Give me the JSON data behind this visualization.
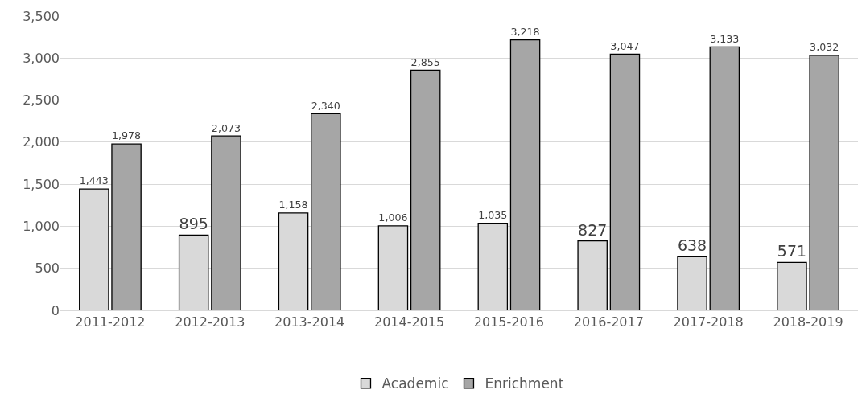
{
  "chart_data": {
    "type": "bar",
    "categories": [
      "2011-2012",
      "2012-2013",
      "2013-2014",
      "2014-2015",
      "2015-2016",
      "2016-2017",
      "2017-2018",
      "2018-2019"
    ],
    "series": [
      {
        "name": "Academic",
        "color": "#d9d9d9",
        "values": [
          1443,
          895,
          1158,
          1006,
          1035,
          827,
          638,
          571
        ],
        "value_labels": [
          "1,443",
          "895",
          "1,158",
          "1,006",
          "1,035",
          "827",
          "638",
          "571"
        ]
      },
      {
        "name": "Enrichment",
        "color": "#a6a6a6",
        "values": [
          1978,
          2073,
          2340,
          2855,
          3218,
          3047,
          3133,
          3032
        ],
        "value_labels": [
          "1,978",
          "2,073",
          "2,340",
          "2,855",
          "3,218",
          "3,047",
          "3,133",
          "3,032"
        ]
      }
    ],
    "ylim": [
      0,
      3500
    ],
    "yticks": [
      0,
      {
        "value": 500,
        "label": "500"
      },
      {
        "value": 1000,
        "label": "1,000"
      },
      {
        "value": 1500,
        "label": "1,500"
      },
      {
        "value": 2000,
        "label": "2,000"
      },
      {
        "value": 2500,
        "label": "2,500"
      },
      {
        "value": 3000,
        "label": "3,000"
      },
      {
        "value": 3500,
        "label": "3,500"
      }
    ],
    "grid": "y",
    "legend": "bottom"
  }
}
